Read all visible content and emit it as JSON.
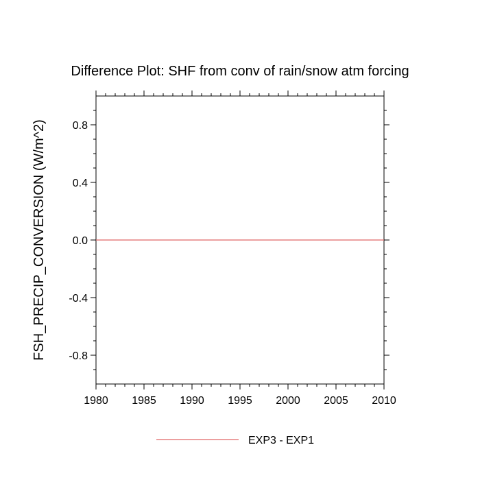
{
  "chart_data": {
    "type": "line",
    "title": "Difference Plot: SHF from conv of rain/snow atm forcing",
    "ylabel": "FSH_PRECIP_CONVERSION  (W/m^2)",
    "xlabel": "",
    "xlim": [
      1980,
      2010
    ],
    "ylim": [
      -1.0,
      1.0
    ],
    "xticks": [
      1980,
      1985,
      1990,
      1995,
      2000,
      2005,
      2010
    ],
    "xtick_labels": [
      "1980",
      "1985",
      "1990",
      "1995",
      "2000",
      "2005",
      "2010"
    ],
    "yticks": [
      -0.8,
      -0.4,
      0.0,
      0.4,
      0.8
    ],
    "ytick_labels": [
      "-0.8",
      "-0.4",
      "0.0",
      "0.4",
      "0.8"
    ],
    "grid": false,
    "legend_position": "bottom-center",
    "series": [
      {
        "name": "EXP3 - EXP1",
        "color": "#e06666",
        "x": [
          1980,
          1985,
          1990,
          1995,
          2000,
          2005,
          2010
        ],
        "y": [
          0,
          0,
          0,
          0,
          0,
          0,
          0
        ]
      }
    ]
  }
}
